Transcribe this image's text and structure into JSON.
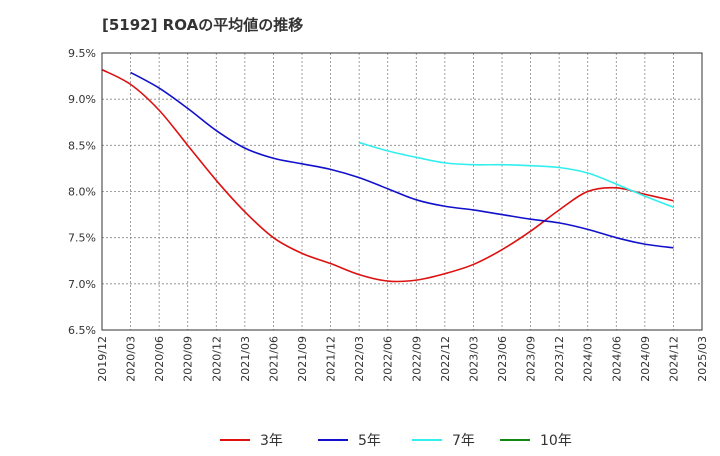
{
  "chart_data": {
    "type": "line",
    "title": "[5192]  ROAの平均値の推移",
    "xlabel": "",
    "ylabel": "",
    "ylim": [
      6.5,
      9.5
    ],
    "yticks": [
      "6.5%",
      "7.0%",
      "7.5%",
      "8.0%",
      "8.5%",
      "9.0%",
      "9.5%"
    ],
    "categories": [
      "2019/12",
      "2020/03",
      "2020/06",
      "2020/09",
      "2020/12",
      "2021/03",
      "2021/06",
      "2021/09",
      "2021/12",
      "2022/03",
      "2022/06",
      "2022/09",
      "2022/12",
      "2023/03",
      "2023/06",
      "2023/09",
      "2023/12",
      "2024/03",
      "2024/06",
      "2024/09",
      "2024/12",
      "2025/03"
    ],
    "grid": true,
    "legend_position": "bottom",
    "series": [
      {
        "name": "3年",
        "color": "#dd1111",
        "values": [
          9.32,
          9.16,
          8.88,
          8.5,
          8.12,
          7.78,
          7.5,
          7.33,
          7.22,
          7.1,
          7.03,
          7.04,
          7.11,
          7.21,
          7.37,
          7.57,
          7.8,
          8.0,
          8.04,
          7.97,
          7.9,
          null
        ]
      },
      {
        "name": "5年",
        "color": "#1111cc",
        "values": [
          null,
          9.29,
          9.12,
          8.9,
          8.66,
          8.47,
          8.36,
          8.3,
          8.24,
          8.15,
          8.03,
          7.91,
          7.84,
          7.8,
          7.75,
          7.7,
          7.66,
          7.59,
          7.5,
          7.43,
          7.39,
          null
        ]
      },
      {
        "name": "7年",
        "color": "#33eeee",
        "values": [
          null,
          null,
          null,
          null,
          null,
          null,
          null,
          null,
          null,
          8.53,
          8.44,
          8.37,
          8.31,
          8.29,
          8.29,
          8.28,
          8.26,
          8.2,
          8.08,
          7.95,
          7.83,
          null
        ]
      },
      {
        "name": "10年",
        "color": "#118811",
        "values": [
          null,
          null,
          null,
          null,
          null,
          null,
          null,
          null,
          null,
          null,
          null,
          null,
          null,
          null,
          null,
          null,
          null,
          null,
          null,
          null,
          null,
          null
        ]
      }
    ]
  }
}
